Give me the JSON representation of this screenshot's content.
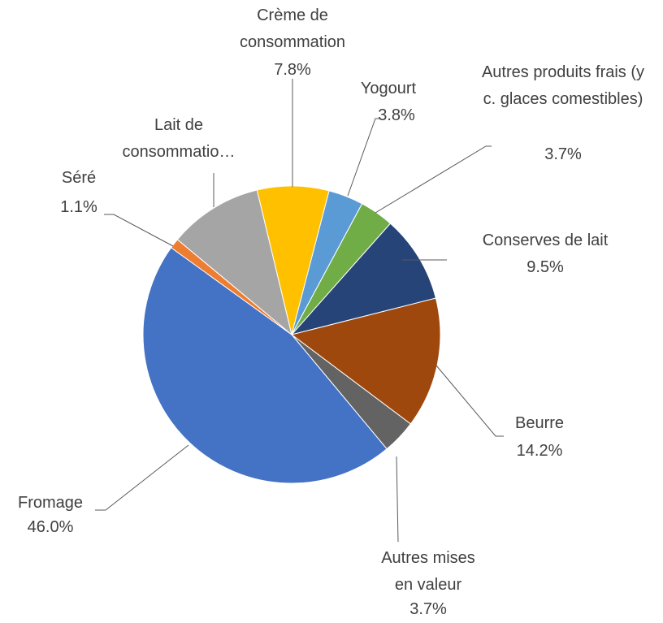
{
  "chart_data": {
    "type": "pie",
    "categories": [
      "Crème de consommation",
      "Yogourt",
      "Autres produits frais (y c. glaces comestibles)",
      "Conserves de lait",
      "Beurre",
      "Autres mises en valeur",
      "Fromage",
      "Séré",
      "Lait de consommatio…"
    ],
    "values": [
      7.8,
      3.8,
      3.7,
      9.5,
      14.2,
      3.7,
      46.0,
      1.1,
      10.2
    ],
    "value_labels": [
      "7.8%",
      "3.8%",
      "3.7%",
      "9.5%",
      "14.2%",
      "3.7%",
      "46.0%",
      "1.1%",
      null
    ],
    "colors": [
      "#FFC000",
      "#5B9BD5",
      "#70AD47",
      "#264478",
      "#9E480E",
      "#636363",
      "#4472C4",
      "#ED7D31",
      "#A5A5A5"
    ]
  }
}
